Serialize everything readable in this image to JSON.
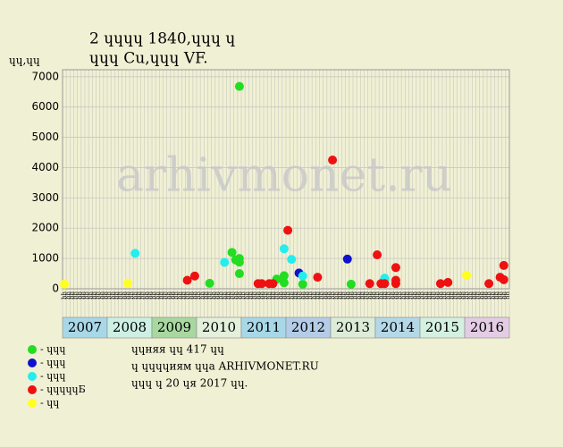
{
  "chart_data": {
    "type": "scatter",
    "title": [
      "2 ɥɥɥɥ 1840,ɥɥɥ ɥ",
      "ɥɥɥ Cu,ɥɥɥ VF."
    ],
    "y_label": "ɥɥ,ɥɥ",
    "watermark": "arhivmonet.ru",
    "notes": [
      "ɥɥняя ɥɥ 417 ɥɥ",
      "ɥ ɥɥɥɥиям ɥɥа ARHIVMONET.RU",
      "ɥɥɥ ɥ 20 ɥя 2017 ɥɥ."
    ],
    "years": [
      {
        "label": "2007",
        "color": "#a8d8e8"
      },
      {
        "label": "2008",
        "color": "#ccf0e4"
      },
      {
        "label": "2009",
        "color": "#a8d8a0"
      },
      {
        "label": "2010",
        "color": "#e4f0dc"
      },
      {
        "label": "2011",
        "color": "#a8d8e8"
      },
      {
        "label": "2012",
        "color": "#b4cce8"
      },
      {
        "label": "2013",
        "color": "#dcecd8"
      },
      {
        "label": "2014",
        "color": "#b4d8e8"
      },
      {
        "label": "2015",
        "color": "#d4f0e0"
      },
      {
        "label": "2016",
        "color": "#e4cce4"
      }
    ],
    "month_labels": [
      "ɥɥ",
      "ɥɥ",
      "ɥɥ",
      "ɥɥ",
      "ɥɥ",
      "ɥɥ",
      "ɥɥ",
      "ɥɥ",
      "ɥɥ",
      "ɥɥ",
      "ɥɥ",
      "ɥɥ"
    ],
    "ylim": [
      0,
      7230
    ],
    "yticks": [
      0,
      1000,
      2000,
      3000,
      4000,
      5000,
      6000,
      7000
    ],
    "grid": true,
    "series": [
      {
        "name": "- ɥɥɥ",
        "color": "#22dd22",
        "x": [
          "2010-04",
          "2010-10",
          "2010-11",
          "2010-12",
          "2010-12",
          "2010-12",
          "2010-12",
          "2011-10",
          "2011-12",
          "2011-12",
          "2012-05",
          "2013-06",
          "2014-03"
        ],
        "values": [
          180,
          1200,
          950,
          500,
          880,
          1000,
          6680,
          320,
          430,
          200,
          150,
          150,
          320
        ]
      },
      {
        "name": "- ɥɥɥ",
        "color": "#1111cc",
        "x": [
          "2012-04",
          "2013-05"
        ],
        "values": [
          520,
          980
        ]
      },
      {
        "name": "- ɥɥɥ",
        "color": "#22eeee",
        "x": [
          "2008-08",
          "2010-08",
          "2011-12",
          "2012-02",
          "2012-05",
          "2014-03"
        ],
        "values": [
          1170,
          870,
          1320,
          970,
          420,
          350
        ]
      },
      {
        "name": "- ɥɥɥɥɥБ",
        "color": "#ee1111",
        "x": [
          "2009-10",
          "2009-12",
          "2011-05",
          "2011-06",
          "2011-08",
          "2011-09",
          "2012-01",
          "2012-09",
          "2013-01",
          "2013-11",
          "2014-01",
          "2014-02",
          "2014-03",
          "2014-06",
          "2014-06",
          "2014-06",
          "2015-06",
          "2015-08",
          "2016-07",
          "2016-10",
          "2016-11",
          "2016-11"
        ],
        "values": [
          280,
          420,
          170,
          170,
          170,
          170,
          1930,
          380,
          4250,
          170,
          1120,
          170,
          170,
          700,
          280,
          170,
          170,
          210,
          170,
          380,
          770,
          300
        ]
      },
      {
        "name": "- ɥɥ",
        "color": "#ffff22",
        "x": [
          "2007-01",
          "2008-06",
          "2016-01"
        ],
        "values": [
          150,
          180,
          450
        ]
      }
    ]
  }
}
